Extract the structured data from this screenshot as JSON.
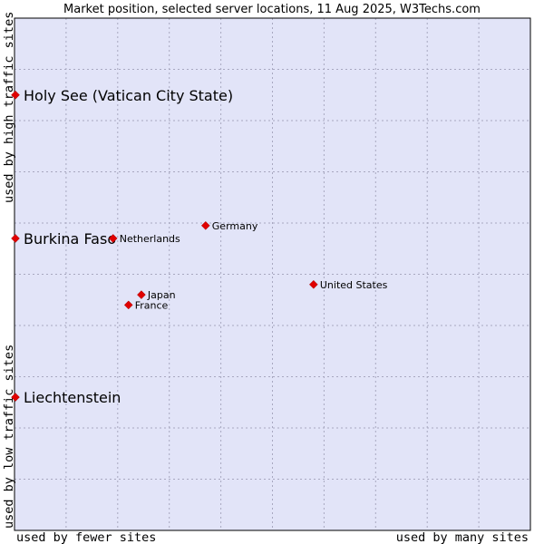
{
  "chart_data": {
    "type": "scatter",
    "title": "Market position, selected server locations, 11 Aug 2025, W3Techs.com",
    "xlabel_left": "used by fewer sites",
    "xlabel_right": "used by many sites",
    "ylabel_bottom": "used by low traffic sites",
    "ylabel_top": "used by high traffic sites",
    "xlim": [
      0,
      10
    ],
    "ylim": [
      0,
      10
    ],
    "grid": true,
    "colors": {
      "plot_bg": "#e2e4f8",
      "grid": "#a8a8c0",
      "point": "#e00000",
      "frame": "#000000"
    },
    "points": [
      {
        "name": "Holy See (Vatican City State)",
        "x": 0.0,
        "y": 8.5,
        "size": "large"
      },
      {
        "name": "Burkina Faso",
        "x": 0.0,
        "y": 5.7,
        "size": "large"
      },
      {
        "name": "Liechtenstein",
        "x": 0.0,
        "y": 2.6,
        "size": "large"
      },
      {
        "name": "Germany",
        "x": 3.7,
        "y": 5.95,
        "size": "small"
      },
      {
        "name": "Netherlands",
        "x": 1.9,
        "y": 5.7,
        "size": "small"
      },
      {
        "name": "United States",
        "x": 5.8,
        "y": 4.8,
        "size": "small"
      },
      {
        "name": "Japan",
        "x": 2.45,
        "y": 4.6,
        "size": "small"
      },
      {
        "name": "France",
        "x": 2.2,
        "y": 4.4,
        "size": "small"
      }
    ]
  }
}
